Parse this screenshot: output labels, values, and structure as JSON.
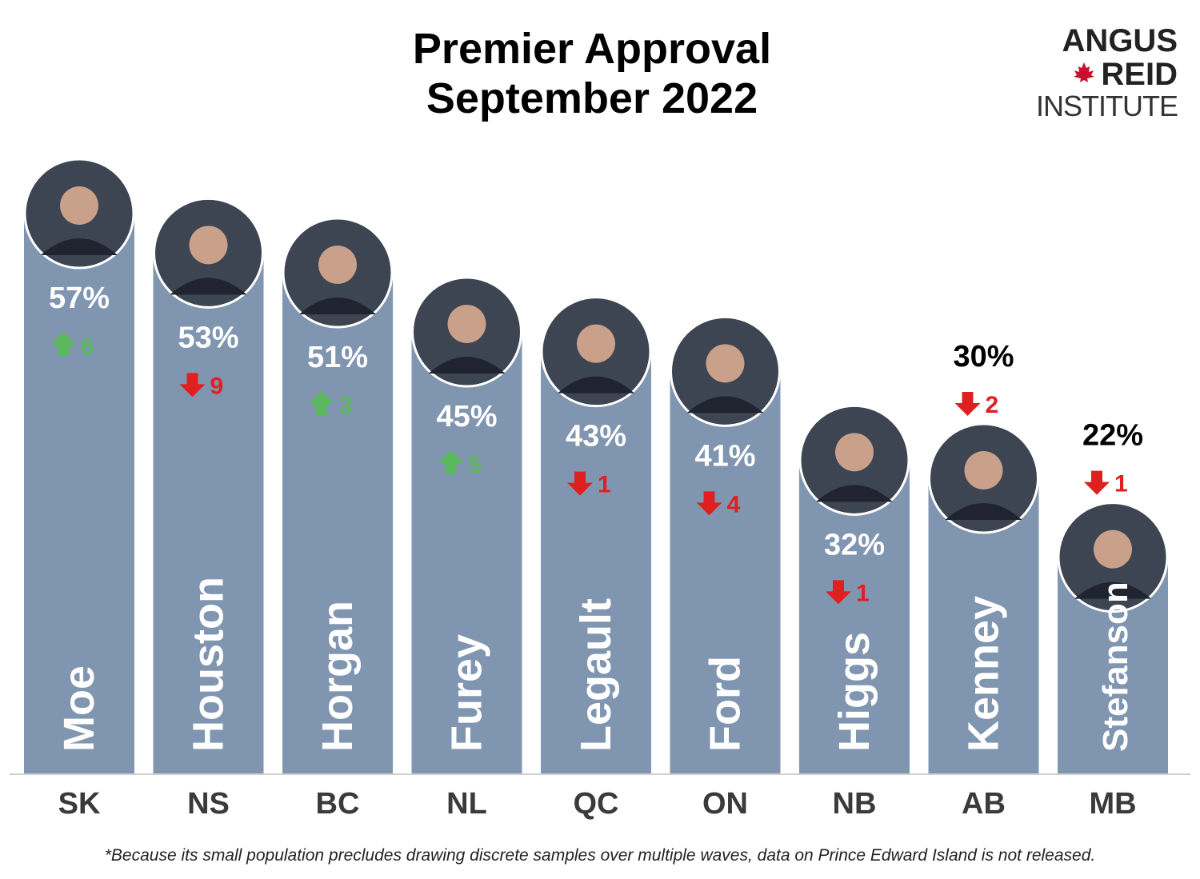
{
  "title_lines": [
    "Premier Approval",
    "September 2022"
  ],
  "logo": {
    "line1": "ANGUS",
    "line2": "REID",
    "line3": "INSTITUTE"
  },
  "footnote": "*Because its small population precludes drawing discrete samples over multiple waves, data on Prince Edward Island is not released.",
  "colors": {
    "bar": "#8095b0",
    "up": "#5cb85c",
    "down": "#e02020",
    "value_inside": "#ffffff",
    "value_outside": "#000000"
  },
  "chart_data": {
    "type": "bar",
    "title": "Premier Approval September 2022",
    "categories": [
      "SK",
      "NS",
      "BC",
      "NL",
      "QC",
      "ON",
      "NB",
      "AB",
      "MB"
    ],
    "names": [
      "Moe",
      "Houston",
      "Horgan",
      "Furey",
      "Legault",
      "Ford",
      "Higgs",
      "Kenney",
      "Stefanson"
    ],
    "values": [
      57,
      53,
      51,
      45,
      43,
      41,
      32,
      30,
      22
    ],
    "value_labels": [
      "57%",
      "53%",
      "51%",
      "45%",
      "43%",
      "41%",
      "32%",
      "30%",
      "22%"
    ],
    "change_values": [
      6,
      -9,
      3,
      5,
      -1,
      -4,
      -1,
      -2,
      -1
    ],
    "change_labels": [
      "6",
      "9",
      "3",
      "5",
      "1",
      "4",
      "1",
      "2",
      "1"
    ],
    "change_direction": [
      "up",
      "down",
      "up",
      "up",
      "down",
      "down",
      "down",
      "down",
      "down"
    ],
    "ylim": [
      0,
      57
    ],
    "grid": false
  }
}
